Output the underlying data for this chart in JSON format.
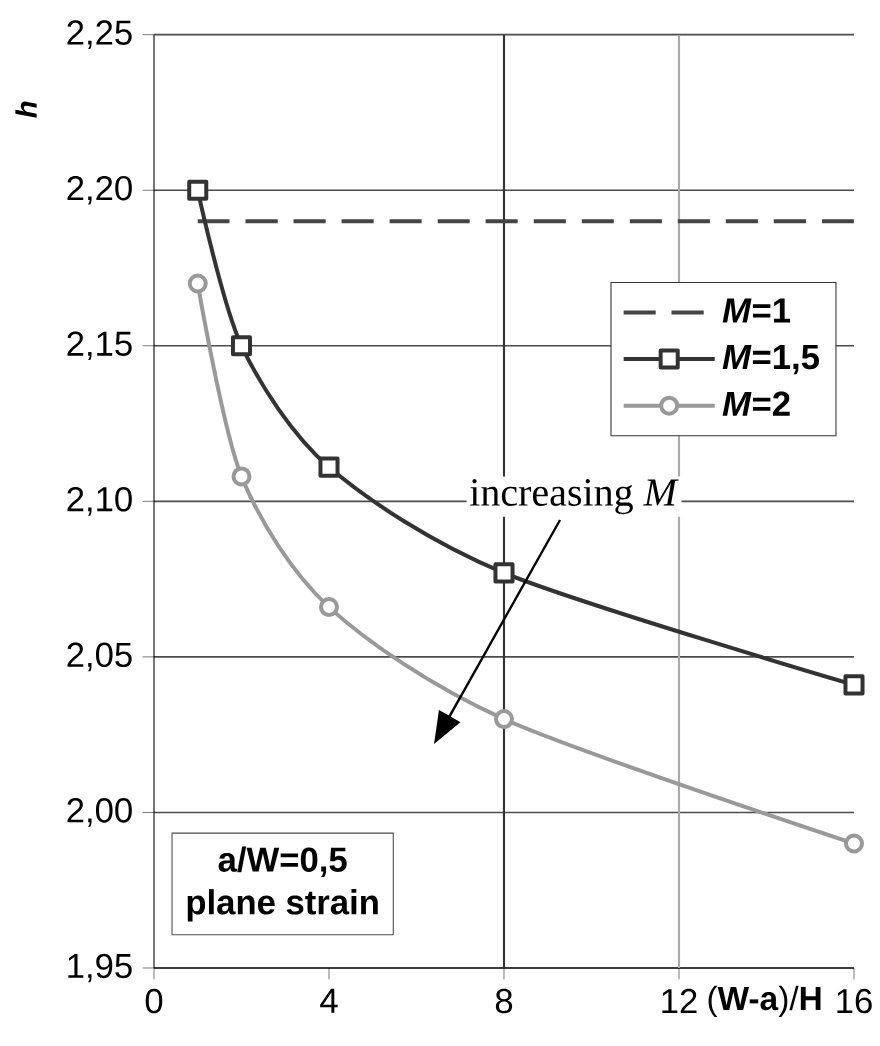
{
  "chart_data": {
    "type": "line",
    "xlabel": "(**W-a**)/**H**",
    "ylabel": "h",
    "xlim": [
      0,
      16
    ],
    "xticks": [
      0,
      4,
      8,
      12,
      16
    ],
    "ylim": [
      1.95,
      2.25
    ],
    "yticks": [
      {
        "value": 1.95,
        "label": "1,95"
      },
      {
        "value": 2.0,
        "label": "2,00"
      },
      {
        "value": 2.05,
        "label": "2,05"
      },
      {
        "value": 2.1,
        "label": "2,10"
      },
      {
        "value": 2.15,
        "label": "2,15"
      },
      {
        "value": 2.2,
        "label": "2,20"
      },
      {
        "value": 2.25,
        "label": "2,25"
      }
    ],
    "grid": "y",
    "legend": "right",
    "ref_lines": [
      {
        "axis": "x",
        "value": 8,
        "color": "#333333"
      },
      {
        "axis": "x",
        "value": 12,
        "color": "#aaaaaa"
      }
    ],
    "series": [
      {
        "name": "*M*=1",
        "color": "#444444",
        "line_style": "dashed",
        "marker": "none",
        "x": [
          1,
          16
        ],
        "values": [
          2.19,
          2.19
        ]
      },
      {
        "name": "*M*=1,5",
        "color": "#333333",
        "line_style": "solid",
        "marker": "square",
        "x": [
          1,
          2,
          4,
          8,
          16
        ],
        "values": [
          2.2,
          2.15,
          2.111,
          2.077,
          2.041
        ]
      },
      {
        "name": "*M*=2",
        "color": "#999999",
        "line_style": "solid",
        "marker": "circle",
        "x": [
          1,
          2,
          4,
          8,
          16
        ],
        "values": [
          2.17,
          2.108,
          2.066,
          2.03,
          1.99
        ]
      }
    ],
    "annotations": [
      "increasing *M*",
      "a/W=0,5",
      "plane strain"
    ]
  }
}
